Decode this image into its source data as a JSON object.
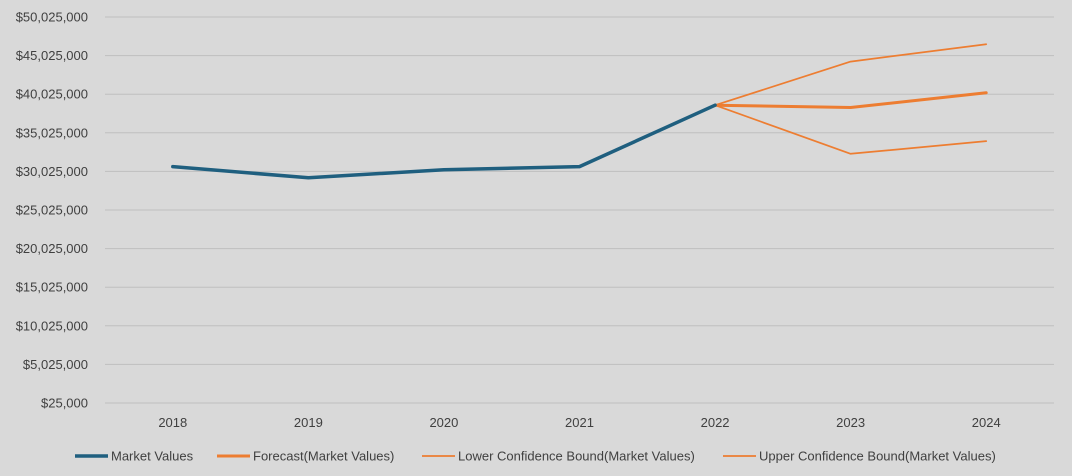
{
  "chart_data": {
    "type": "line",
    "categories": [
      "2018",
      "2019",
      "2020",
      "2021",
      "2022",
      "2023",
      "2024"
    ],
    "ylim": [
      25000,
      50025000
    ],
    "yticks": [
      25000,
      5025000,
      10025000,
      15025000,
      20025000,
      25025000,
      30025000,
      35025000,
      40025000,
      45025000,
      50025000
    ],
    "ytick_labels": [
      "$25,000",
      "$5,025,000",
      "$10,025,000",
      "$15,025,000",
      "$20,025,000",
      "$25,025,000",
      "$30,025,000",
      "$35,025,000",
      "$40,025,000",
      "$45,025,000",
      "$50,025,000"
    ],
    "grid": true,
    "legend_position": "bottom",
    "series": [
      {
        "name": "Market Values",
        "color": "#1f5f7f",
        "weight": "thick",
        "values": [
          30650000,
          29200000,
          30250000,
          30650000,
          38600000,
          null,
          null
        ]
      },
      {
        "name": "Forecast(Market Values)",
        "color": "#ed7d31",
        "weight": "medium",
        "values": [
          null,
          null,
          null,
          null,
          38600000,
          38300000,
          40200000
        ]
      },
      {
        "name": "Lower Confidence Bound(Market Values)",
        "color": "#ed7d31",
        "weight": "thin",
        "values": [
          null,
          null,
          null,
          null,
          38600000,
          32300000,
          33950000
        ]
      },
      {
        "name": "Upper Confidence Bound(Market Values)",
        "color": "#ed7d31",
        "weight": "thin",
        "values": [
          null,
          null,
          null,
          null,
          38600000,
          44250000,
          46500000
        ]
      }
    ]
  }
}
